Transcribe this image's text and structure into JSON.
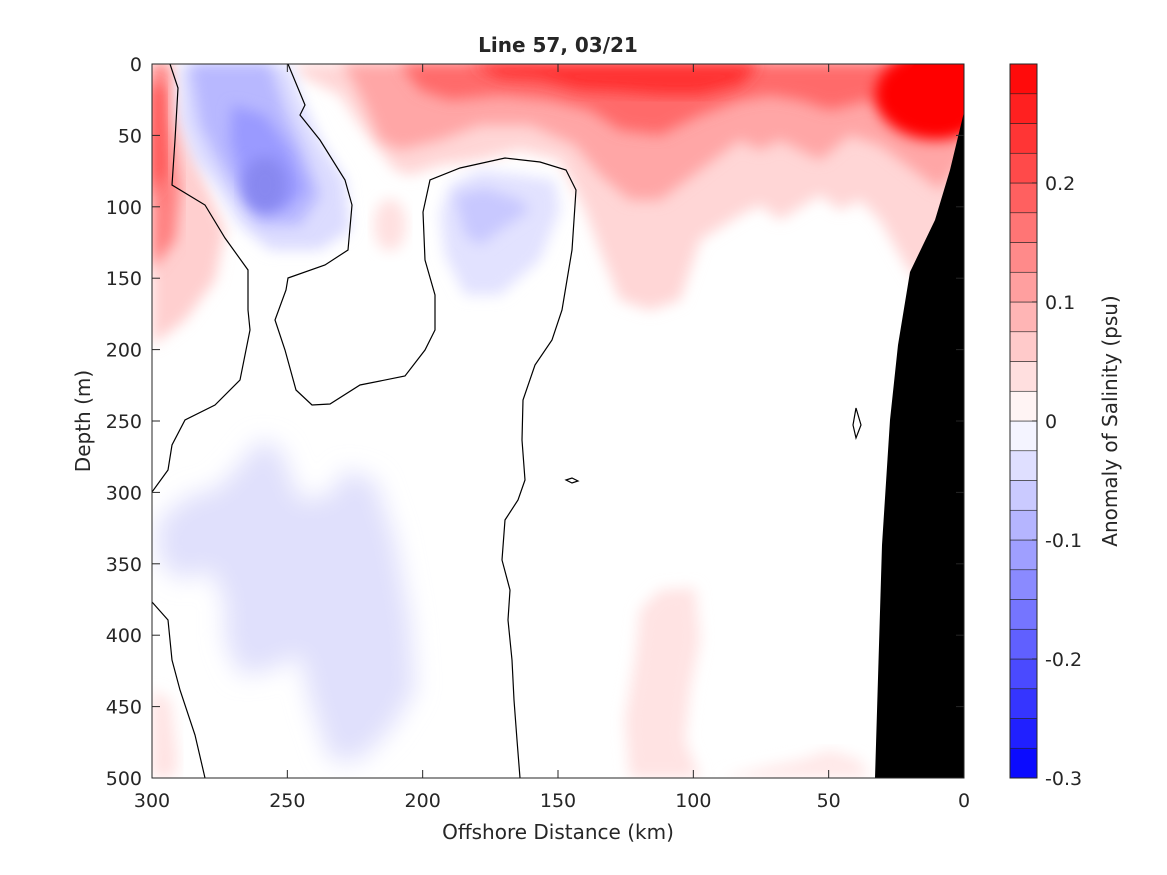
{
  "chart_data": {
    "type": "heatmap",
    "subtype": "filled contour section",
    "title": "Line 57, 03/21",
    "xlabel": "Offshore Distance (km)",
    "ylabel": "Depth (m)",
    "xlim": [
      300,
      0
    ],
    "ylim": [
      0,
      500
    ],
    "x_reversed": true,
    "y_reversed": true,
    "x_ticks": [
      300,
      250,
      200,
      150,
      100,
      50,
      0
    ],
    "y_ticks": [
      0,
      50,
      100,
      150,
      200,
      250,
      300,
      350,
      400,
      450,
      500
    ],
    "colorbar": {
      "label": "Anomaly of Salinity (psu)",
      "range": [
        -0.3,
        0.3
      ],
      "ticks": [
        -0.3,
        -0.2,
        -0.1,
        0,
        0.1,
        0.2
      ],
      "levels": [
        -0.3,
        -0.275,
        -0.25,
        -0.225,
        -0.2,
        -0.175,
        -0.15,
        -0.125,
        -0.1,
        -0.075,
        -0.05,
        -0.025,
        0,
        0.025,
        0.05,
        0.075,
        0.1,
        0.125,
        0.15,
        0.175,
        0.2,
        0.225,
        0.25,
        0.275,
        0.3
      ]
    },
    "zero_contour": true,
    "grid": false,
    "colors": {
      "positive": "#ff0000",
      "negative": "#0000ff",
      "neutral": "#ffffff",
      "bathymetry": "#000000",
      "contour": "#000000"
    },
    "regions": [
      {
        "sign": "positive",
        "feature": "surface high-salinity layer",
        "x_range": [
          230,
          0
        ],
        "depth_range": [
          0,
          60
        ],
        "peak": 0.3,
        "peak_location": [
          10,
          20
        ]
      },
      {
        "sign": "positive",
        "feature": "offshore edge band",
        "x_range": [
          300,
          285
        ],
        "depth_range": [
          0,
          240
        ],
        "peak": 0.2
      },
      {
        "sign": "negative",
        "feature": "offshore subsurface low",
        "x_range": [
          290,
          235
        ],
        "depth_range": [
          0,
          130
        ],
        "peak": -0.1,
        "peak_location": [
          258,
          85
        ]
      },
      {
        "sign": "negative",
        "feature": "mid subsurface low",
        "x_range": [
          190,
          140
        ],
        "depth_range": [
          80,
          160
        ],
        "peak": -0.05
      },
      {
        "sign": "negative",
        "feature": "deep low",
        "x_range": [
          300,
          195
        ],
        "depth_range": [
          260,
          490
        ],
        "peak": -0.025
      },
      {
        "sign": "positive",
        "feature": "deep weak high",
        "x_range": [
          125,
          100
        ],
        "depth_range": [
          370,
          500
        ],
        "peak": 0.025
      }
    ],
    "bathymetry": [
      [
        0,
        35
      ],
      [
        5,
        70
      ],
      [
        10,
        105
      ],
      [
        17,
        140
      ],
      [
        22,
        190
      ],
      [
        28,
        250
      ],
      [
        32,
        340
      ],
      [
        36,
        500
      ]
    ]
  }
}
